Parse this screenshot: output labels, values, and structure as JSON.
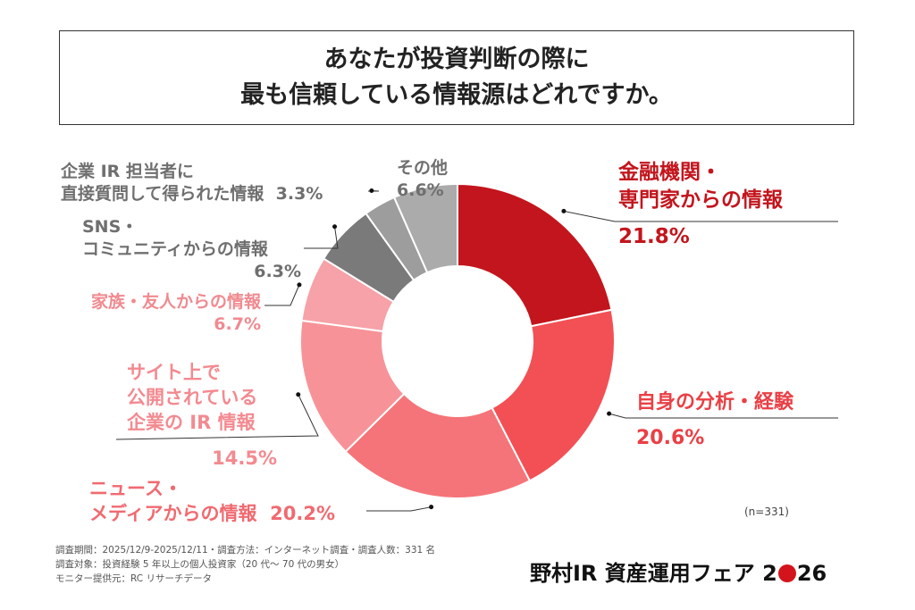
{
  "title_lines": [
    "あなたが投資判断の際に",
    "最も信頼している情報源はどれですか。"
  ],
  "chart_data": {
    "type": "pie",
    "donut": true,
    "start": "top, clockwise",
    "slices": [
      {
        "label": "金融機関・専門家からの情報",
        "label_lines": [
          "金融機関・",
          "専門家からの情報"
        ],
        "value": 21.8,
        "value_label": "21.8%",
        "color": "#c3151d"
      },
      {
        "label": "自身の分析・経験",
        "label_lines": [
          "自身の分析・経験"
        ],
        "value": 20.6,
        "value_label": "20.6%",
        "color": "#f25055"
      },
      {
        "label": "ニュース・メディアからの情報",
        "label_lines": [
          "ニュース・",
          "メディアからの情報"
        ],
        "value": 20.2,
        "value_label": "20.2%",
        "color": "#f57479"
      },
      {
        "label": "サイト上で公開されている企業の IR 情報",
        "label_lines": [
          "サイト上で",
          "公開されている",
          "企業の IR 情報"
        ],
        "value": 14.5,
        "value_label": "14.5%",
        "color": "#f79398"
      },
      {
        "label": "家族・友人からの情報",
        "label_lines": [
          "家族・友人からの情報"
        ],
        "value": 6.7,
        "value_label": "6.7%",
        "color": "#f6a2a8"
      },
      {
        "label": "SNS・コミュニティからの情報",
        "label_lines": [
          "SNS・",
          "コミュニティからの情報"
        ],
        "value": 6.3,
        "value_label": "6.3%",
        "color": "#7a7a7a"
      },
      {
        "label": "企業 IR 担当者に直接質問して得られた情報",
        "label_lines": [
          "企業 IR 担当者に",
          "直接質問して得られた情報"
        ],
        "value": 3.3,
        "value_label": "3.3%",
        "color": "#9d9d9d"
      },
      {
        "label": "その他",
        "label_lines": [
          "その他"
        ],
        "value": 6.6,
        "value_label": "6.6%",
        "color": "#ababab"
      }
    ]
  },
  "sample_note": "(n=331)",
  "footer": [
    "調査期間：2025/12/9-2025/12/11・調査方法：インターネット調査・調査人数：331 名",
    "調査対象：投資経験 5 年以上の個人投資家（20 代～ 70 代の男女）",
    "モニター提供元：RC リサーチデータ"
  ],
  "logo": {
    "before": "野村IR 資産運用フェア 2",
    "after": "26"
  }
}
